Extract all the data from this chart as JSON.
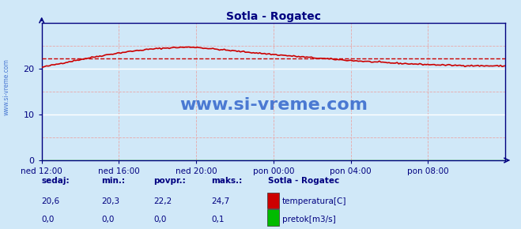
{
  "title": "Sotla - Rogatec",
  "title_color": "#000080",
  "bg_color": "#d0e8f8",
  "plot_bg_color": "#d0e8f8",
  "x_ticks_labels": [
    "ned 12:00",
    "ned 16:00",
    "ned 20:00",
    "pon 00:00",
    "pon 04:00",
    "pon 08:00"
  ],
  "x_ticks_pos": [
    0.0,
    0.1667,
    0.3333,
    0.5,
    0.6667,
    0.8333
  ],
  "ylim": [
    0,
    30
  ],
  "yticks": [
    0,
    10,
    20
  ],
  "temp_avg": 22.2,
  "temp_min": 20.3,
  "temp_max": 24.7,
  "temp_current": 20.6,
  "pretok_current": 0.0,
  "pretok_min": 0.0,
  "pretok_avg": 0.0,
  "pretok_max": 0.1,
  "temp_line_color": "#cc0000",
  "pretok_line_color": "#00bb00",
  "avg_line_color": "#cc0000",
  "grid_v_color": "#e8a8a8",
  "grid_h_color": "#e8a8a8",
  "watermark": "www.si-vreme.com",
  "watermark_color": "#3366cc",
  "axis_color": "#000080",
  "tick_color": "#000080",
  "label_color": "#000080",
  "legend_title": "Sotla - Rogatec",
  "legend_label1": "temperatura[C]",
  "legend_label2": "pretok[m3/s]",
  "legend_color1": "#cc0000",
  "legend_color2": "#00bb00",
  "sidebar_text": "www.si-vreme.com",
  "n_points": 288,
  "figwidth": 6.59,
  "figheight": 2.9,
  "dpi": 100
}
